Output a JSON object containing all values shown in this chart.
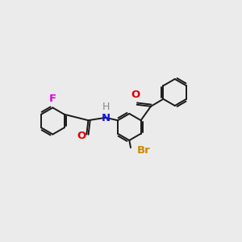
{
  "background_color": "#ebebeb",
  "bond_color": "#1a1a1a",
  "bond_lw": 1.4,
  "dbo": 0.055,
  "r": 0.4,
  "atom_labels": {
    "F": {
      "text": "F",
      "color": "#e000e0",
      "fs": 9.5
    },
    "O1": {
      "text": "O",
      "color": "#dd0000",
      "fs": 9.5
    },
    "O2": {
      "text": "O",
      "color": "#dd0000",
      "fs": 9.5
    },
    "N": {
      "text": "N",
      "color": "#1414dd",
      "fs": 9.5
    },
    "H": {
      "text": "H",
      "color": "#888888",
      "fs": 9.5
    },
    "Br": {
      "text": "Br",
      "color": "#cc8800",
      "fs": 9.5
    }
  },
  "xlim": [
    0.0,
    7.2
  ],
  "ylim": [
    0.5,
    5.5
  ]
}
